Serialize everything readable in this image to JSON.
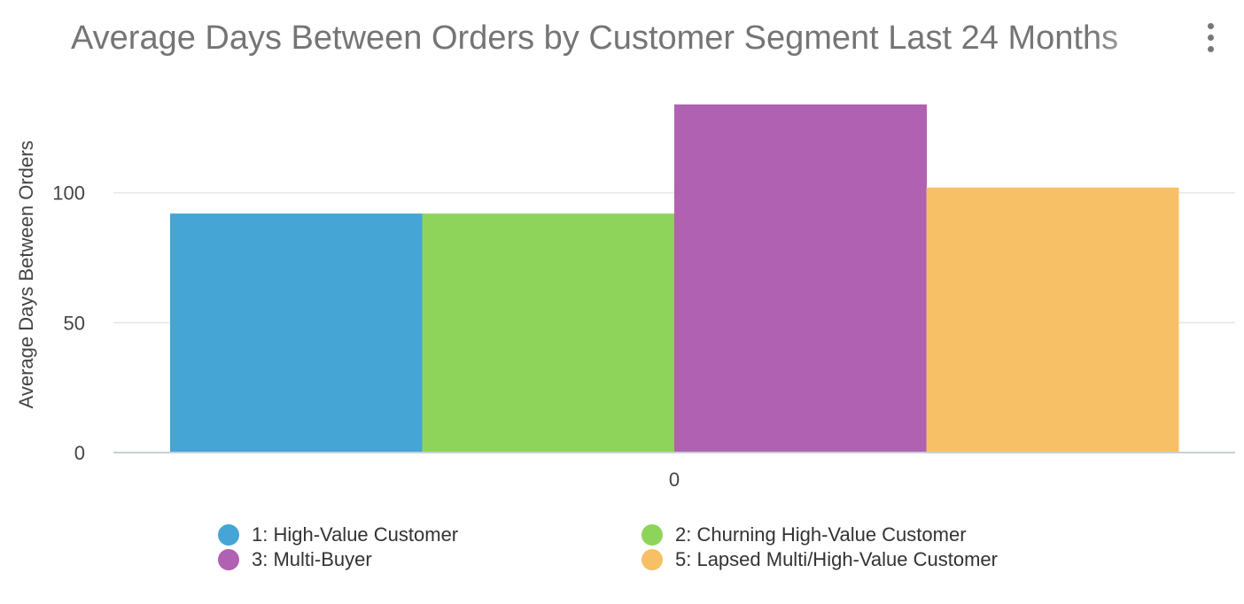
{
  "header": {
    "title": "Average Days Between Orders by Customer Segment Last 24 Months",
    "menu_icon": "more-vert-icon"
  },
  "chart_data": {
    "type": "bar",
    "title": "Average Days Between Orders by Customer Segment Last 24 Months",
    "xlabel": "",
    "ylabel": "Average Days Between Orders",
    "categories": [
      "0"
    ],
    "ylim": [
      0,
      135
    ],
    "yticks": [
      0,
      50,
      100
    ],
    "grid": true,
    "legend_position": "bottom",
    "series": [
      {
        "name": "1: High-Value Customer",
        "values": [
          92
        ],
        "color": "#45a5d4"
      },
      {
        "name": "2: Churning High-Value Customer",
        "values": [
          92
        ],
        "color": "#8fd45a"
      },
      {
        "name": "3: Multi-Buyer",
        "values": [
          134
        ],
        "color": "#b061b1"
      },
      {
        "name": "5: Lapsed Multi/High-Value Customer",
        "values": [
          102
        ],
        "color": "#f7c066"
      }
    ]
  }
}
